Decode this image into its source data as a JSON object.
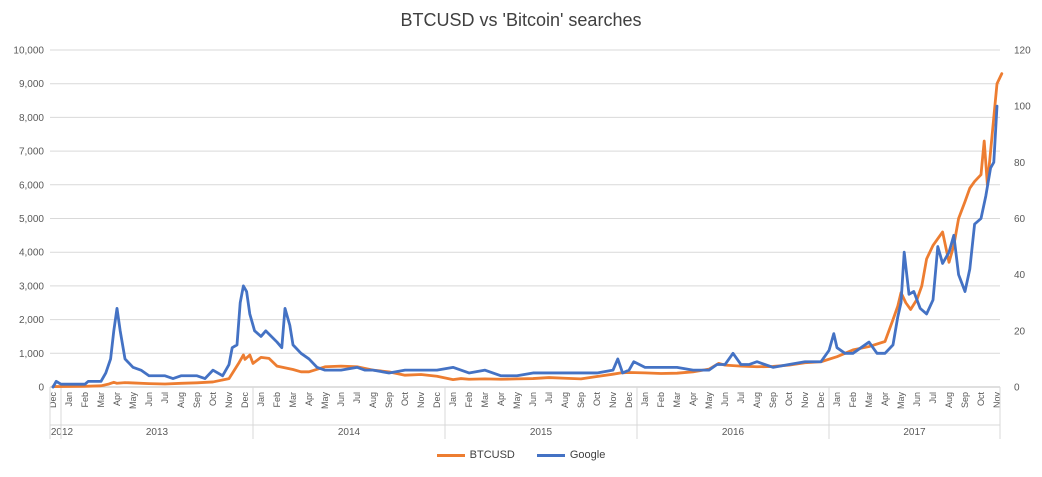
{
  "chart_data": {
    "type": "line",
    "title": "BTCUSD vs 'Bitcoin' searches",
    "y_left": {
      "min": 0,
      "max": 10000,
      "step": 1000,
      "tick_labels": [
        "0",
        "1,000",
        "2,000",
        "3,000",
        "4,000",
        "5,000",
        "6,000",
        "7,000",
        "8,000",
        "9,000",
        "10,000"
      ]
    },
    "y_right": {
      "min": 0,
      "max": 120,
      "step": 20,
      "tick_labels": [
        "0",
        "20",
        "40",
        "60",
        "80",
        "100",
        "120"
      ]
    },
    "x_axis": {
      "start": "2012-12",
      "months": [
        "Dec",
        "Jan",
        "Feb",
        "Mar",
        "Apr",
        "May",
        "Jun",
        "Jul",
        "Aug",
        "Sep",
        "Oct",
        "Nov",
        "Dec",
        "Jan",
        "Feb",
        "Mar",
        "Apr",
        "May",
        "Jun",
        "Jul",
        "Aug",
        "Sep",
        "Oct",
        "Nov",
        "Dec",
        "Jan",
        "Feb",
        "Mar",
        "Apr",
        "May",
        "Jun",
        "Jul",
        "Aug",
        "Sep",
        "Oct",
        "Nov",
        "Dec",
        "Jan",
        "Feb",
        "Mar",
        "Apr",
        "May",
        "Jun",
        "Jul",
        "Aug",
        "Sep",
        "Oct",
        "Nov",
        "Dec",
        "Jan",
        "Feb",
        "Mar",
        "Apr",
        "May",
        "Jun",
        "Jul",
        "Aug",
        "Sep",
        "Oct",
        "Nov"
      ],
      "years": [
        {
          "label": "2012",
          "from": 0,
          "to": 0
        },
        {
          "label": "2013",
          "from": 1,
          "to": 12
        },
        {
          "label": "2014",
          "from": 13,
          "to": 24
        },
        {
          "label": "2015",
          "from": 25,
          "to": 36
        },
        {
          "label": "2016",
          "from": 37,
          "to": 48
        },
        {
          "label": "2017",
          "from": 49,
          "to": 59
        }
      ]
    },
    "series": [
      {
        "name": "BTCUSD",
        "axis": "left",
        "color": "#ED7D31",
        "points": [
          [
            0,
            13
          ],
          [
            1,
            15
          ],
          [
            2,
            20
          ],
          [
            3,
            35
          ],
          [
            3.5,
            90
          ],
          [
            3.8,
            140
          ],
          [
            4,
            110
          ],
          [
            4.5,
            130
          ],
          [
            5,
            120
          ],
          [
            6,
            100
          ],
          [
            7,
            90
          ],
          [
            8,
            110
          ],
          [
            9,
            125
          ],
          [
            10,
            150
          ],
          [
            11,
            250
          ],
          [
            11.6,
            700
          ],
          [
            11.9,
            950
          ],
          [
            12,
            820
          ],
          [
            12.3,
            950
          ],
          [
            12.5,
            700
          ],
          [
            13,
            880
          ],
          [
            13.5,
            850
          ],
          [
            14,
            620
          ],
          [
            15,
            520
          ],
          [
            15.5,
            450
          ],
          [
            16,
            450
          ],
          [
            17,
            600
          ],
          [
            18,
            620
          ],
          [
            19,
            600
          ],
          [
            20,
            500
          ],
          [
            21,
            450
          ],
          [
            22,
            350
          ],
          [
            23,
            370
          ],
          [
            24,
            320
          ],
          [
            25,
            220
          ],
          [
            25.5,
            250
          ],
          [
            26,
            230
          ],
          [
            27,
            240
          ],
          [
            28,
            230
          ],
          [
            29,
            240
          ],
          [
            30,
            250
          ],
          [
            31,
            280
          ],
          [
            32,
            260
          ],
          [
            33,
            240
          ],
          [
            34,
            310
          ],
          [
            35,
            380
          ],
          [
            35.5,
            420
          ],
          [
            36,
            430
          ],
          [
            37,
            420
          ],
          [
            38,
            400
          ],
          [
            39,
            410
          ],
          [
            40,
            450
          ],
          [
            41,
            530
          ],
          [
            41.6,
            700
          ],
          [
            42,
            650
          ],
          [
            43,
            620
          ],
          [
            44,
            600
          ],
          [
            45,
            610
          ],
          [
            46,
            650
          ],
          [
            47,
            720
          ],
          [
            48,
            750
          ],
          [
            49,
            900
          ],
          [
            49.5,
            1000
          ],
          [
            50,
            1100
          ],
          [
            51,
            1200
          ],
          [
            52,
            1350
          ],
          [
            52.5,
            2000
          ],
          [
            52.8,
            2400
          ],
          [
            53,
            2800
          ],
          [
            53.3,
            2500
          ],
          [
            53.6,
            2300
          ],
          [
            54,
            2600
          ],
          [
            54.3,
            3000
          ],
          [
            54.6,
            3800
          ],
          [
            55,
            4200
          ],
          [
            55.3,
            4400
          ],
          [
            55.6,
            4600
          ],
          [
            56,
            3700
          ],
          [
            56.3,
            4200
          ],
          [
            56.6,
            5000
          ],
          [
            57,
            5500
          ],
          [
            57.3,
            5900
          ],
          [
            57.6,
            6100
          ],
          [
            58,
            6300
          ],
          [
            58.2,
            7300
          ],
          [
            58.4,
            6000
          ],
          [
            58.6,
            7000
          ],
          [
            58.8,
            8000
          ],
          [
            59,
            9000
          ],
          [
            59.3,
            9300
          ]
        ]
      },
      {
        "name": "Google",
        "axis": "right",
        "color": "#4472C4",
        "points": [
          [
            0,
            0
          ],
          [
            0.2,
            2
          ],
          [
            0.5,
            1
          ],
          [
            1,
            1
          ],
          [
            2,
            1
          ],
          [
            2.2,
            2
          ],
          [
            2.6,
            2
          ],
          [
            3,
            2
          ],
          [
            3.3,
            5
          ],
          [
            3.6,
            10
          ],
          [
            3.8,
            20
          ],
          [
            4,
            28
          ],
          [
            4.2,
            20
          ],
          [
            4.5,
            10
          ],
          [
            5,
            7
          ],
          [
            5.5,
            6
          ],
          [
            6,
            4
          ],
          [
            7,
            4
          ],
          [
            7.5,
            3
          ],
          [
            8,
            4
          ],
          [
            9,
            4
          ],
          [
            9.5,
            3
          ],
          [
            10,
            6
          ],
          [
            10.6,
            4
          ],
          [
            11,
            8
          ],
          [
            11.2,
            14
          ],
          [
            11.5,
            15
          ],
          [
            11.7,
            30
          ],
          [
            11.9,
            36
          ],
          [
            12.1,
            34
          ],
          [
            12.3,
            26
          ],
          [
            12.6,
            20
          ],
          [
            13,
            18
          ],
          [
            13.3,
            20
          ],
          [
            14,
            16
          ],
          [
            14.3,
            14
          ],
          [
            14.5,
            28
          ],
          [
            14.8,
            22
          ],
          [
            15,
            15
          ],
          [
            15.5,
            12
          ],
          [
            16,
            10
          ],
          [
            16.5,
            7
          ],
          [
            17,
            6
          ],
          [
            18,
            6
          ],
          [
            19,
            7
          ],
          [
            19.5,
            6
          ],
          [
            20,
            6
          ],
          [
            21,
            5
          ],
          [
            22,
            6
          ],
          [
            23,
            6
          ],
          [
            24,
            6
          ],
          [
            25,
            7
          ],
          [
            26,
            5
          ],
          [
            27,
            6
          ],
          [
            28,
            4
          ],
          [
            29,
            4
          ],
          [
            30,
            5
          ],
          [
            31,
            5
          ],
          [
            32,
            5
          ],
          [
            33,
            5
          ],
          [
            34,
            5
          ],
          [
            35,
            6
          ],
          [
            35.3,
            10
          ],
          [
            35.6,
            5
          ],
          [
            36,
            6
          ],
          [
            36.3,
            9
          ],
          [
            37,
            7
          ],
          [
            38,
            7
          ],
          [
            39,
            7
          ],
          [
            40,
            6
          ],
          [
            41,
            6
          ],
          [
            41.5,
            8
          ],
          [
            42,
            8
          ],
          [
            42.5,
            12
          ],
          [
            43,
            8
          ],
          [
            43.5,
            8
          ],
          [
            44,
            9
          ],
          [
            45,
            7
          ],
          [
            46,
            8
          ],
          [
            47,
            9
          ],
          [
            48,
            9
          ],
          [
            48.5,
            13
          ],
          [
            48.8,
            19
          ],
          [
            49,
            14
          ],
          [
            49.5,
            12
          ],
          [
            50,
            12
          ],
          [
            51,
            16
          ],
          [
            51.5,
            12
          ],
          [
            52,
            12
          ],
          [
            52.5,
            15
          ],
          [
            52.8,
            25
          ],
          [
            53,
            30
          ],
          [
            53.2,
            48
          ],
          [
            53.5,
            33
          ],
          [
            53.8,
            34
          ],
          [
            54.2,
            28
          ],
          [
            54.6,
            26
          ],
          [
            55,
            31
          ],
          [
            55.3,
            50
          ],
          [
            55.6,
            44
          ],
          [
            56,
            48
          ],
          [
            56.3,
            54
          ],
          [
            56.6,
            40
          ],
          [
            57,
            34
          ],
          [
            57.3,
            42
          ],
          [
            57.6,
            58
          ],
          [
            58,
            60
          ],
          [
            58.3,
            68
          ],
          [
            58.6,
            78
          ],
          [
            58.8,
            80
          ],
          [
            59,
            100
          ]
        ]
      }
    ],
    "legend": {
      "position": "bottom",
      "entries": [
        "BTCUSD",
        "Google"
      ]
    },
    "grid": {
      "horizontal": true,
      "vertical": false
    }
  }
}
